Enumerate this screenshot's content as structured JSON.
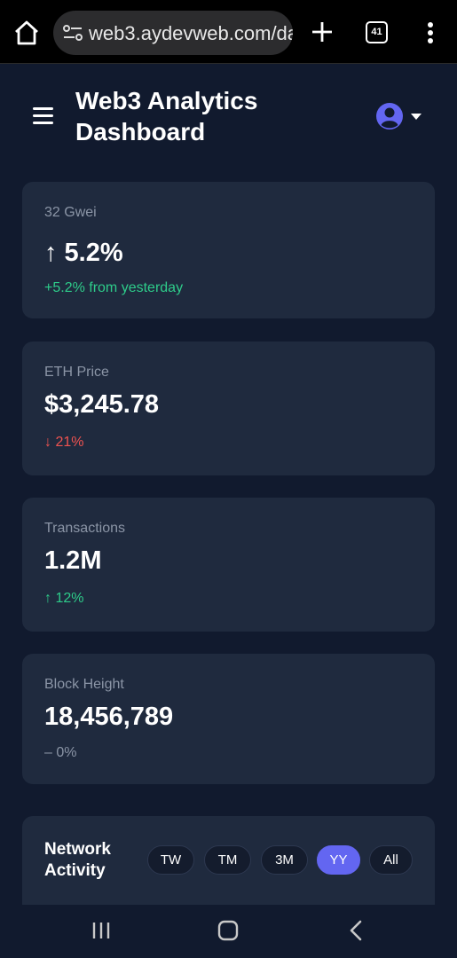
{
  "browser": {
    "url": "web3.aydevweb.com/da",
    "tab_count": "41"
  },
  "header": {
    "title": "Web3 Analytics Dashboard"
  },
  "cards": [
    {
      "label": "32 Gwei",
      "value": "↑ 5.2%",
      "change": "+5.2% from yesterday",
      "trend": "up"
    },
    {
      "label": "ETH Price",
      "value": "$3,245.78",
      "change": "↓ 21%",
      "trend": "down"
    },
    {
      "label": "Transactions",
      "value": "1.2M",
      "change": "↑ 12%",
      "trend": "up"
    },
    {
      "label": "Block Height",
      "value": "18,456,789",
      "change": "– 0%",
      "trend": "neutral"
    }
  ],
  "network_activity": {
    "title": "Network Activity",
    "ranges": [
      "TW",
      "TM",
      "3M",
      "YY",
      "All"
    ],
    "selected_range": "YY"
  },
  "colors": {
    "background": "#111a2e",
    "card": "#1f2a3e",
    "accent": "#6366f1",
    "positive": "#2ecc8a",
    "negative": "#ef5350",
    "muted": "#8b95a6"
  },
  "icons": {
    "browser_home": "home-icon",
    "site_settings": "site-settings-icon",
    "new_tab": "plus-icon",
    "tabs": "tabs-icon",
    "overflow": "more-vert-icon",
    "menu": "hamburger-icon",
    "user": "user-circle-icon",
    "dropdown": "caret-down-icon",
    "nav_recents": "recents-icon",
    "nav_home": "nav-home-icon",
    "nav_back": "back-icon"
  }
}
